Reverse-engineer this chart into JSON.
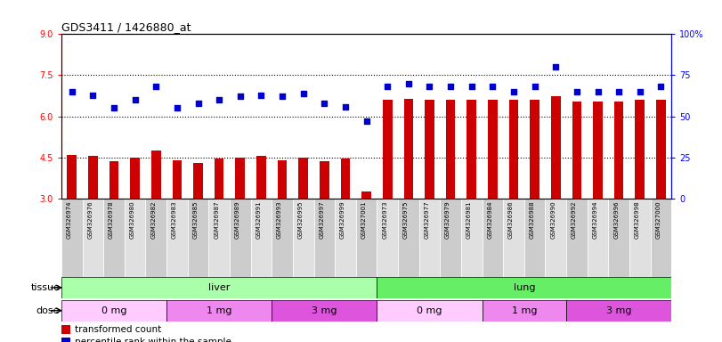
{
  "title": "GDS3411 / 1426880_at",
  "samples": [
    "GSM326974",
    "GSM326976",
    "GSM326978",
    "GSM326980",
    "GSM326982",
    "GSM326983",
    "GSM326985",
    "GSM326987",
    "GSM326989",
    "GSM326991",
    "GSM326993",
    "GSM326995",
    "GSM326997",
    "GSM326999",
    "GSM327001",
    "GSM326973",
    "GSM326975",
    "GSM326977",
    "GSM326979",
    "GSM326981",
    "GSM326984",
    "GSM326986",
    "GSM326988",
    "GSM326990",
    "GSM326992",
    "GSM326994",
    "GSM326996",
    "GSM326998",
    "GSM327000"
  ],
  "transformed_count": [
    4.6,
    4.55,
    4.35,
    4.5,
    4.75,
    4.4,
    4.3,
    4.45,
    4.5,
    4.55,
    4.4,
    4.5,
    4.35,
    4.45,
    3.25,
    6.6,
    6.65,
    6.6,
    6.6,
    6.6,
    6.6,
    6.6,
    6.6,
    6.75,
    6.55,
    6.55,
    6.55,
    6.6,
    6.6
  ],
  "percentile_rank": [
    65,
    63,
    55,
    60,
    68,
    55,
    58,
    60,
    62,
    63,
    62,
    64,
    58,
    56,
    47,
    68,
    70,
    68,
    68,
    68,
    68,
    65,
    68,
    80,
    65,
    65,
    65,
    65,
    68
  ],
  "bar_color": "#cc0000",
  "dot_color": "#0000cc",
  "ylim_left": [
    3,
    9
  ],
  "ylim_right": [
    0,
    100
  ],
  "yticks_left": [
    3,
    4.5,
    6,
    7.5,
    9
  ],
  "yticks_right": [
    0,
    25,
    50,
    75,
    100
  ],
  "tissue_groups": [
    {
      "label": "liver",
      "start": 0,
      "end": 15,
      "color": "#aaffaa"
    },
    {
      "label": "lung",
      "start": 15,
      "end": 29,
      "color": "#66ee66"
    }
  ],
  "dose_groups": [
    {
      "label": "0 mg",
      "start": 0,
      "end": 5,
      "color": "#ffccff"
    },
    {
      "label": "1 mg",
      "start": 5,
      "end": 10,
      "color": "#ee88ee"
    },
    {
      "label": "3 mg",
      "start": 10,
      "end": 15,
      "color": "#dd55dd"
    },
    {
      "label": "0 mg",
      "start": 15,
      "end": 20,
      "color": "#ffccff"
    },
    {
      "label": "1 mg",
      "start": 20,
      "end": 24,
      "color": "#ee88ee"
    },
    {
      "label": "3 mg",
      "start": 24,
      "end": 29,
      "color": "#dd55dd"
    }
  ],
  "legend_items": [
    {
      "label": "transformed count",
      "color": "#cc0000"
    },
    {
      "label": "percentile rank within the sample",
      "color": "#0000cc"
    }
  ],
  "dotted_lines": [
    4.5,
    6.0,
    7.5
  ],
  "tick_bg_even": "#cccccc",
  "tick_bg_odd": "#e0e0e0"
}
